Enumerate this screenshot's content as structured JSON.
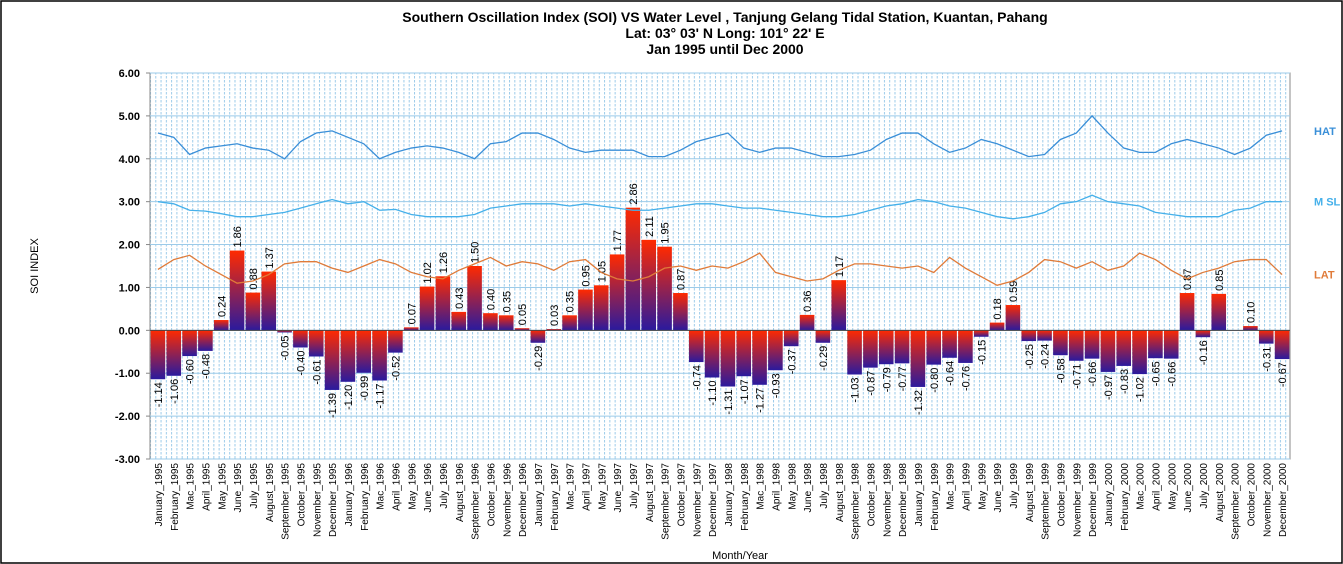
{
  "chart_data": {
    "type": "bar",
    "title": [
      "Southern Oscillation Index (SOI) VS Water Level , Tanjung  Gelang Tidal  Station, Kuantan, Pahang",
      "Lat: 03° 03' N Long: 101° 22' E",
      "Jan 1995 until Dec 2000"
    ],
    "y_label": "SOI INDEX",
    "x_label": "Month/Year",
    "categories": [
      "January_1995",
      "February_1995",
      "Mac_1995",
      "April_1995",
      "May_1995",
      "June_1995",
      "July_1995",
      "August_1995",
      "September_1995",
      "October_1995",
      "November_1995",
      "December_1995",
      "January_1996",
      "February_1996",
      "Mac_1996",
      "April_1996",
      "May_1996",
      "June_1996",
      "July_1996",
      "August_1996",
      "September_1996",
      "October_1996",
      "November_1996",
      "December_1996",
      "January_1997",
      "February_1997",
      "Mac_1997",
      "April_1997",
      "May_1997",
      "June_1997",
      "July_1997",
      "August_1997",
      "September_1997",
      "October_1997",
      "November_1997",
      "December_1997",
      "January_1998",
      "February_1998",
      "Mac_1998",
      "April_1998",
      "May_1998",
      "June_1998",
      "July_1998",
      "August_1998",
      "September_1998",
      "October_1998",
      "November_1998",
      "December_1998",
      "January_1999",
      "February_1999",
      "Mac_1999",
      "April_1999",
      "May_1999",
      "June_1999",
      "July_1999",
      "August_1999",
      "September_1999",
      "October_1999",
      "November_1999",
      "December_1999",
      "January_2000",
      "February_2000",
      "Mac_2000",
      "April_2000",
      "May_2000",
      "June_2000",
      "July_2000",
      "August_2000",
      "September_2000",
      "October_2000",
      "November_2000",
      "December_2000"
    ],
    "values": [
      -1.14,
      -1.06,
      -0.6,
      -0.48,
      0.24,
      1.86,
      0.88,
      1.37,
      -0.05,
      -0.4,
      -0.61,
      -1.39,
      -1.2,
      -0.99,
      -1.17,
      -0.52,
      0.07,
      1.02,
      1.26,
      0.43,
      1.5,
      0.4,
      0.35,
      0.05,
      -0.29,
      0.03,
      0.35,
      0.95,
      1.05,
      1.77,
      2.86,
      2.11,
      1.95,
      0.87,
      -0.74,
      -1.1,
      -1.31,
      -1.07,
      -1.27,
      -0.93,
      -0.37,
      0.36,
      -0.29,
      1.17,
      -1.03,
      -0.87,
      -0.79,
      -0.77,
      -1.32,
      -0.8,
      -0.64,
      -0.76,
      -0.15,
      0.18,
      0.59,
      -0.25,
      -0.24,
      -0.58,
      -0.71,
      -0.66,
      -0.97,
      -0.83,
      -1.02,
      -0.65,
      -0.66,
      0.87,
      -0.16,
      0.85,
      null,
      0.1,
      -0.31,
      -0.67
    ],
    "value_labels": [
      "-1.14",
      "-1.06",
      "-0.60",
      "-0.48",
      "0.24",
      "1.86",
      "0.88",
      "1.37",
      "-0.05",
      "-0.40",
      "-0.61",
      "-1.39",
      "-1.20",
      "-0.99",
      "-1.17",
      "-0.52",
      "0.07",
      "1.02",
      "1.26",
      "0.43",
      "1.50",
      "0.40",
      "0.35",
      "0.05",
      "-0.29",
      "0.03",
      "0.35",
      "0.95",
      "1.05",
      "1.77",
      "2.86",
      "2.11",
      "1.95",
      "0.87",
      "-0.74",
      "-1.10",
      "-1.31",
      "-1.07",
      "-1.27",
      "-0.93",
      "-0.37",
      "0.36",
      "-0.29",
      "1.17",
      "-1.03",
      "-0.87",
      "-0.79",
      "-0.77",
      "-1.32",
      "-0.80",
      "-0.64",
      "-0.76",
      "-0.15",
      "0.18",
      "0.59",
      "-0.25",
      "-0.24",
      "-0.58",
      "-0.71",
      "-0.66",
      "-0.97",
      "-0.83",
      "-1.02",
      "-0.65",
      "-0.66",
      "0.87",
      "-0.16",
      "0.85",
      null,
      "0.10",
      "-0.31",
      "-0.67"
    ],
    "bar_colors": [
      "#ff2a00",
      "#2a1a9e"
    ],
    "series": [
      {
        "name": "HAT",
        "type": "line",
        "color": "#3a8fd8",
        "values": [
          4.6,
          4.5,
          4.1,
          4.25,
          4.3,
          4.35,
          4.25,
          4.2,
          4.0,
          4.4,
          4.6,
          4.65,
          4.5,
          4.35,
          4.0,
          4.15,
          4.25,
          4.3,
          4.25,
          4.15,
          4.0,
          4.35,
          4.4,
          4.6,
          4.6,
          4.45,
          4.25,
          4.15,
          4.2,
          4.2,
          4.2,
          4.05,
          4.05,
          4.2,
          4.4,
          4.5,
          4.6,
          4.25,
          4.15,
          4.25,
          4.25,
          4.15,
          4.05,
          4.05,
          4.1,
          4.2,
          4.45,
          4.6,
          4.6,
          4.35,
          4.15,
          4.25,
          4.45,
          4.35,
          4.2,
          4.05,
          4.1,
          4.45,
          4.6,
          5.0,
          4.6,
          4.25,
          4.15,
          4.15,
          4.35,
          4.45,
          4.35,
          4.25,
          4.1,
          4.25,
          4.55,
          4.65
        ]
      },
      {
        "name": "M SL",
        "type": "line",
        "color": "#45b0ea",
        "values": [
          3.0,
          2.95,
          2.8,
          2.78,
          2.72,
          2.65,
          2.65,
          2.7,
          2.75,
          2.85,
          2.95,
          3.05,
          2.95,
          3.0,
          2.8,
          2.82,
          2.7,
          2.65,
          2.65,
          2.65,
          2.7,
          2.85,
          2.9,
          2.95,
          2.95,
          2.95,
          2.9,
          2.95,
          2.9,
          2.85,
          2.8,
          2.8,
          2.85,
          2.9,
          2.95,
          2.95,
          2.9,
          2.85,
          2.85,
          2.8,
          2.75,
          2.7,
          2.65,
          2.65,
          2.7,
          2.8,
          2.9,
          2.95,
          3.05,
          3.0,
          2.9,
          2.85,
          2.75,
          2.65,
          2.6,
          2.65,
          2.75,
          2.95,
          3.0,
          3.15,
          3.0,
          2.95,
          2.9,
          2.75,
          2.7,
          2.65,
          2.65,
          2.65,
          2.8,
          2.85,
          3.0,
          3.0
        ]
      },
      {
        "name": "LAT",
        "type": "line",
        "color": "#e07b39",
        "values": [
          1.42,
          1.65,
          1.75,
          1.5,
          1.3,
          1.1,
          1.15,
          1.3,
          1.55,
          1.6,
          1.6,
          1.45,
          1.35,
          1.5,
          1.65,
          1.55,
          1.35,
          1.25,
          1.2,
          1.4,
          1.55,
          1.7,
          1.5,
          1.6,
          1.55,
          1.4,
          1.6,
          1.65,
          1.35,
          1.2,
          1.15,
          1.25,
          1.45,
          1.5,
          1.4,
          1.5,
          1.45,
          1.6,
          1.8,
          1.35,
          1.25,
          1.15,
          1.2,
          1.4,
          1.55,
          1.55,
          1.5,
          1.45,
          1.5,
          1.35,
          1.7,
          1.45,
          1.25,
          1.05,
          1.15,
          1.35,
          1.65,
          1.6,
          1.45,
          1.6,
          1.4,
          1.5,
          1.8,
          1.65,
          1.4,
          1.2,
          1.35,
          1.45,
          1.6,
          1.65,
          1.65,
          1.3
        ]
      }
    ],
    "ylim": [
      -3,
      6
    ],
    "yticks": [
      {
        "value": -3,
        "label": "-3.00"
      },
      {
        "value": -2,
        "label": "-2.00"
      },
      {
        "value": -1,
        "label": "-1.00"
      },
      {
        "value": 0,
        "label": "0.00"
      },
      {
        "value": 1,
        "label": "1.00"
      },
      {
        "value": 2,
        "label": "2.00"
      },
      {
        "value": 3,
        "label": "3.00"
      },
      {
        "value": 4,
        "label": "4.00"
      },
      {
        "value": 5,
        "label": "5.00"
      },
      {
        "value": 6,
        "label": "6.00"
      }
    ],
    "grid": true
  }
}
